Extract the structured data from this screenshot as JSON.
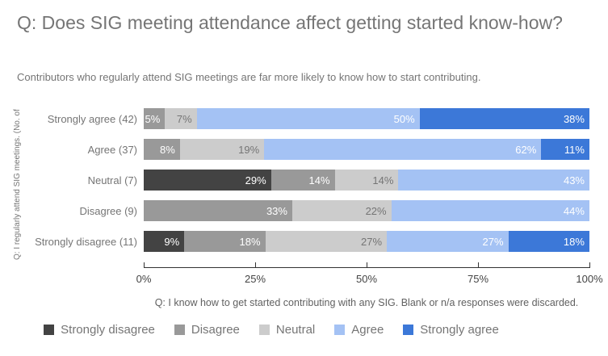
{
  "header": {
    "title": "Q: Does SIG meeting attendance affect getting started know-how?",
    "subtitle": "Contributors who regularly attend SIG meetings are far more likely to know how to start contributing."
  },
  "chart_data": {
    "type": "bar",
    "variant": "horizontal-stacked-100",
    "title": "Q: Does SIG meeting attendance affect getting started know-how?",
    "subtitle": "Contributors who regularly attend SIG meetings are far more likely to know how to start contributing.",
    "ylabel": "Q: I regularly attend SIG meetings. (No. of",
    "footnote": "Q: I know how to get started contributing with any SIG. Blank or n/a responses were discarded.",
    "categories": [
      "Strongly agree (42)",
      "Agree (37)",
      "Neutral (7)",
      "Disagree (9)",
      "Strongly disagree (11)"
    ],
    "series": [
      {
        "name": "Strongly disagree",
        "color": "#434343",
        "label_color": "#ffffff",
        "values": [
          0,
          0,
          29,
          0,
          9
        ],
        "widths": [
          0,
          0,
          28.57,
          0,
          9.09
        ]
      },
      {
        "name": "Disagree",
        "color": "#999999",
        "label_color": "#ffffff",
        "values": [
          5,
          8,
          14,
          33,
          18
        ],
        "widths": [
          4.76,
          8.11,
          14.29,
          33.33,
          18.18
        ]
      },
      {
        "name": "Neutral",
        "color": "#cccccc",
        "label_color": "#757575",
        "values": [
          7,
          19,
          14,
          22,
          27
        ],
        "widths": [
          7.14,
          18.92,
          14.29,
          22.22,
          27.27
        ]
      },
      {
        "name": "Agree",
        "color": "#a4c2f4",
        "label_color": "#ffffff",
        "values": [
          50,
          62,
          43,
          44,
          27
        ],
        "widths": [
          50.0,
          62.16,
          42.86,
          44.44,
          27.27
        ]
      },
      {
        "name": "Strongly agree",
        "color": "#3c78d8",
        "label_color": "#ffffff",
        "values": [
          38,
          11,
          0,
          0,
          18
        ],
        "widths": [
          38.1,
          10.81,
          0,
          0,
          18.18
        ]
      }
    ],
    "unit": "%",
    "x_ticks": [
      "0%",
      "25%",
      "50%",
      "75%",
      "100%"
    ],
    "xlim": [
      0,
      100
    ],
    "legend_position": "bottom",
    "grid": false
  }
}
